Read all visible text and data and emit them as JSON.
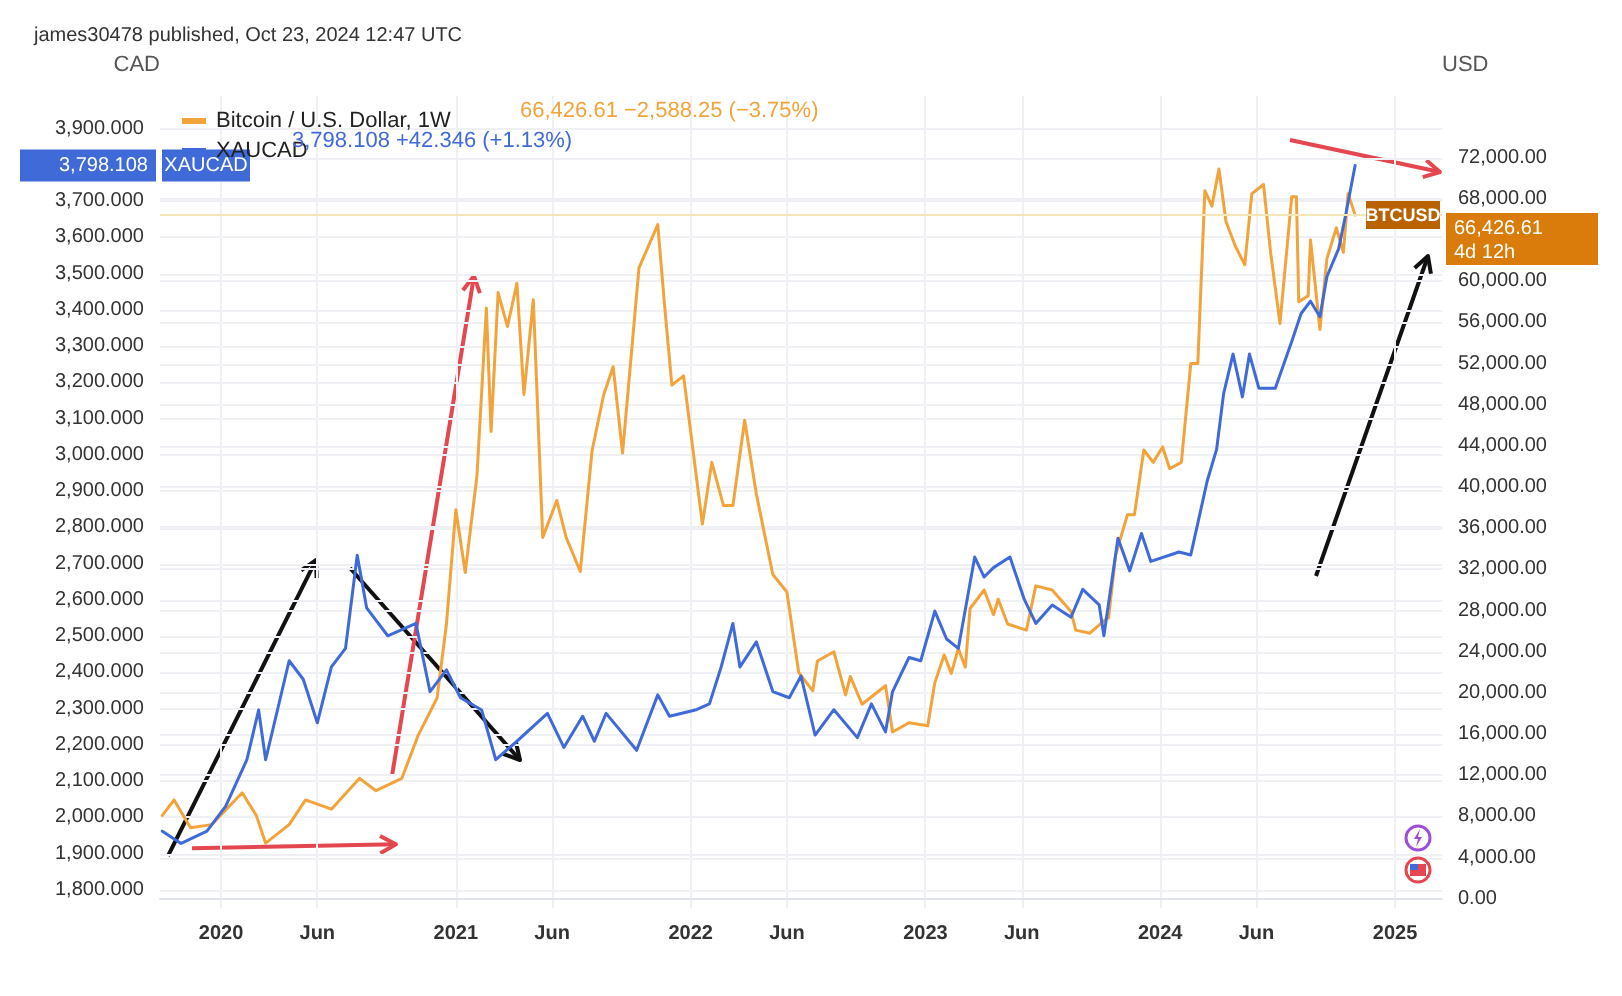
{
  "chart_data": {
    "type": "line",
    "title": "james30478 published, Oct 23, 2024 12:47 UTC",
    "ylabel": "CAD",
    "y2label": "USD",
    "legend": "top left",
    "grid": true,
    "annotations": [
      "66,426.61 −2,588.25 (−3.75%)",
      "3,798.108 +42.346 (+1.13%)",
      "3,798.108",
      "XAUCAD",
      "BTCUSD",
      "66,426.61\n4d 12h"
    ],
    "xlim": [
      2019.74,
      2025.2
    ],
    "xticks": [
      {
        "value": 2020,
        "label": "2020"
      },
      {
        "value": 2020.41,
        "label": "Jun"
      },
      {
        "value": 2021,
        "label": "2021"
      },
      {
        "value": 2021.41,
        "label": "Jun"
      },
      {
        "value": 2022,
        "label": "2022"
      },
      {
        "value": 2022.41,
        "label": "Jun"
      },
      {
        "value": 2023,
        "label": "2023"
      },
      {
        "value": 2023.41,
        "label": "Jun"
      },
      {
        "value": 2024,
        "label": "2024"
      },
      {
        "value": 2024.41,
        "label": "Jun"
      },
      {
        "value": 2025,
        "label": "2025"
      }
    ],
    "ylim": [
      1750,
      3990
    ],
    "yticks": [
      {
        "value": 1800,
        "label": "1,800.000"
      },
      {
        "value": 1900,
        "label": "1,900.000"
      },
      {
        "value": 2000,
        "label": "2,000.000"
      },
      {
        "value": 2100,
        "label": "2,100.000"
      },
      {
        "value": 2200,
        "label": "2,200.000"
      },
      {
        "value": 2300,
        "label": "2,300.000"
      },
      {
        "value": 2400,
        "label": "2,400.000"
      },
      {
        "value": 2500,
        "label": "2,500.000"
      },
      {
        "value": 2600,
        "label": "2,600.000"
      },
      {
        "value": 2700,
        "label": "2,700.000"
      },
      {
        "value": 2800,
        "label": "2,800.000"
      },
      {
        "value": 2900,
        "label": "2,900.000"
      },
      {
        "value": 3000,
        "label": "3,000.000"
      },
      {
        "value": 3100,
        "label": "3,100.000"
      },
      {
        "value": 3200,
        "label": "3,200.000"
      },
      {
        "value": 3300,
        "label": "3,300.000"
      },
      {
        "value": 3400,
        "label": "3,400.000"
      },
      {
        "value": 3500,
        "label": "3,500.000"
      },
      {
        "value": 3600,
        "label": "3,600.000"
      },
      {
        "value": 3700,
        "label": "3,700.000"
      },
      {
        "value": 3900,
        "label": "3,900.000"
      }
    ],
    "y2lim": [
      -900,
      78000
    ],
    "y2ticks": [
      {
        "value": 0,
        "label": "0.00"
      },
      {
        "value": 4000,
        "label": "4,000.00"
      },
      {
        "value": 8000,
        "label": "8,000.00"
      },
      {
        "value": 12000,
        "label": "12,000.00"
      },
      {
        "value": 16000,
        "label": "16,000.00"
      },
      {
        "value": 20000,
        "label": "20,000.00"
      },
      {
        "value": 24000,
        "label": "24,000.00"
      },
      {
        "value": 28000,
        "label": "28,000.00"
      },
      {
        "value": 32000,
        "label": "32,000.00"
      },
      {
        "value": 36000,
        "label": "36,000.00"
      },
      {
        "value": 40000,
        "label": "40,000.00"
      },
      {
        "value": 44000,
        "label": "44,000.00"
      },
      {
        "value": 48000,
        "label": "48,000.00"
      },
      {
        "value": 52000,
        "label": "52,000.00"
      },
      {
        "value": 56000,
        "label": "56,000.00"
      },
      {
        "value": 60000,
        "label": "60,000.00"
      },
      {
        "value": 68000,
        "label": "68,000.00"
      },
      {
        "value": 72000,
        "label": "72,000.00"
      }
    ],
    "ref_lines": [
      {
        "axis": "y2",
        "value": 66426.61,
        "color": "#f5e6b8"
      }
    ],
    "series": [
      {
        "name": "Bitcoin / U.S. Dollar, 1W",
        "color": "#f2a33a",
        "axis": "y2",
        "x": [
          2019.75,
          2019.8,
          2019.87,
          2019.96,
          2020.09,
          2020.15,
          2020.19,
          2020.29,
          2020.36,
          2020.47,
          2020.59,
          2020.66,
          2020.77,
          2020.84,
          2020.92,
          2020.96,
          2021.0,
          2021.04,
          2021.09,
          2021.13,
          2021.15,
          2021.18,
          2021.22,
          2021.26,
          2021.29,
          2021.33,
          2021.37,
          2021.43,
          2021.47,
          2021.53,
          2021.58,
          2021.63,
          2021.67,
          2021.71,
          2021.78,
          2021.86,
          2021.89,
          2021.92,
          2021.97,
          2022.02,
          2022.05,
          2022.09,
          2022.14,
          2022.18,
          2022.23,
          2022.28,
          2022.35,
          2022.41,
          2022.46,
          2022.52,
          2022.54,
          2022.61,
          2022.66,
          2022.68,
          2022.73,
          2022.83,
          2022.86,
          2022.93,
          2023.01,
          2023.04,
          2023.08,
          2023.11,
          2023.14,
          2023.17,
          2023.19,
          2023.25,
          2023.29,
          2023.31,
          2023.35,
          2023.43,
          2023.47,
          2023.54,
          2023.62,
          2023.64,
          2023.7,
          2023.76,
          2023.78,
          2023.81,
          2023.86,
          2023.89,
          2023.93,
          2023.97,
          2024.01,
          2024.04,
          2024.09,
          2024.13,
          2024.16,
          2024.19,
          2024.22,
          2024.25,
          2024.28,
          2024.32,
          2024.36,
          2024.39,
          2024.44,
          2024.47,
          2024.51,
          2024.56,
          2024.58,
          2024.59,
          2024.63,
          2024.64,
          2024.68,
          2024.71,
          2024.75,
          2024.78,
          2024.8,
          2024.83
        ],
        "values": [
          8100,
          9600,
          6900,
          7200,
          10300,
          8100,
          5400,
          7200,
          9600,
          8700,
          11700,
          10500,
          11700,
          15900,
          19500,
          26700,
          37800,
          31700,
          41100,
          57400,
          45400,
          58900,
          55600,
          59800,
          49000,
          58200,
          35100,
          38700,
          35100,
          31800,
          43500,
          49000,
          51700,
          43300,
          61300,
          65500,
          57400,
          49900,
          50800,
          41800,
          36400,
          42400,
          38200,
          38200,
          46500,
          39300,
          31500,
          29800,
          22000,
          20200,
          23100,
          24000,
          19800,
          21600,
          18900,
          20700,
          16200,
          17100,
          16800,
          21000,
          23700,
          21900,
          24300,
          22500,
          28200,
          30000,
          27600,
          29100,
          26700,
          26100,
          30400,
          30000,
          27900,
          26100,
          25800,
          27000,
          27300,
          33400,
          37300,
          37300,
          43600,
          42400,
          43900,
          41800,
          42400,
          52000,
          52000,
          68800,
          67300,
          70900,
          65800,
          63400,
          61600,
          68500,
          69400,
          62800,
          55900,
          68200,
          68200,
          58000,
          58600,
          64000,
          55300,
          62200,
          65200,
          62800,
          68500,
          66426.61
        ]
      },
      {
        "name": "XAUCAD",
        "color": "#3f6ad8",
        "x": [
          2019.75,
          2019.83,
          2019.94,
          2020.02,
          2020.11,
          2020.16,
          2020.19,
          2020.29,
          2020.35,
          2020.41,
          2020.47,
          2020.53,
          2020.58,
          2020.62,
          2020.71,
          2020.83,
          2020.89,
          2020.96,
          2021.02,
          2021.11,
          2021.17,
          2021.26,
          2021.39,
          2021.46,
          2021.54,
          2021.59,
          2021.64,
          2021.77,
          2021.86,
          2021.91,
          2022.02,
          2022.08,
          2022.13,
          2022.18,
          2022.21,
          2022.28,
          2022.35,
          2022.42,
          2022.47,
          2022.53,
          2022.61,
          2022.71,
          2022.77,
          2022.83,
          2022.86,
          2022.93,
          2022.98,
          2023.04,
          2023.09,
          2023.14,
          2023.21,
          2023.25,
          2023.29,
          2023.36,
          2023.42,
          2023.47,
          2023.54,
          2023.62,
          2023.67,
          2023.74,
          2023.76,
          2023.82,
          2023.87,
          2023.92,
          2023.96,
          2024.08,
          2024.13,
          2024.2,
          2024.24,
          2024.27,
          2024.31,
          2024.35,
          2024.38,
          2024.42,
          2024.49,
          2024.56,
          2024.6,
          2024.64,
          2024.68,
          2024.71,
          2024.76,
          2024.79,
          2024.83
        ],
        "values": [
          1962,
          1928,
          1962,
          2031,
          2159,
          2296,
          2159,
          2432,
          2381,
          2261,
          2415,
          2466,
          2723,
          2578,
          2501,
          2535,
          2347,
          2407,
          2330,
          2296,
          2159,
          2210,
          2287,
          2193,
          2279,
          2210,
          2287,
          2185,
          2338,
          2279,
          2296,
          2313,
          2415,
          2535,
          2415,
          2484,
          2347,
          2330,
          2390,
          2227,
          2297,
          2220,
          2313,
          2236,
          2347,
          2441,
          2432,
          2569,
          2492,
          2466,
          2718,
          2663,
          2689,
          2718,
          2603,
          2535,
          2586,
          2552,
          2629,
          2586,
          2501,
          2770,
          2680,
          2783,
          2706,
          2732,
          2724,
          2928,
          3015,
          3169,
          3278,
          3160,
          3278,
          3184,
          3184,
          3313,
          3390,
          3424,
          3381,
          3492,
          3569,
          3663,
          3798.108
        ]
      }
    ]
  }
}
